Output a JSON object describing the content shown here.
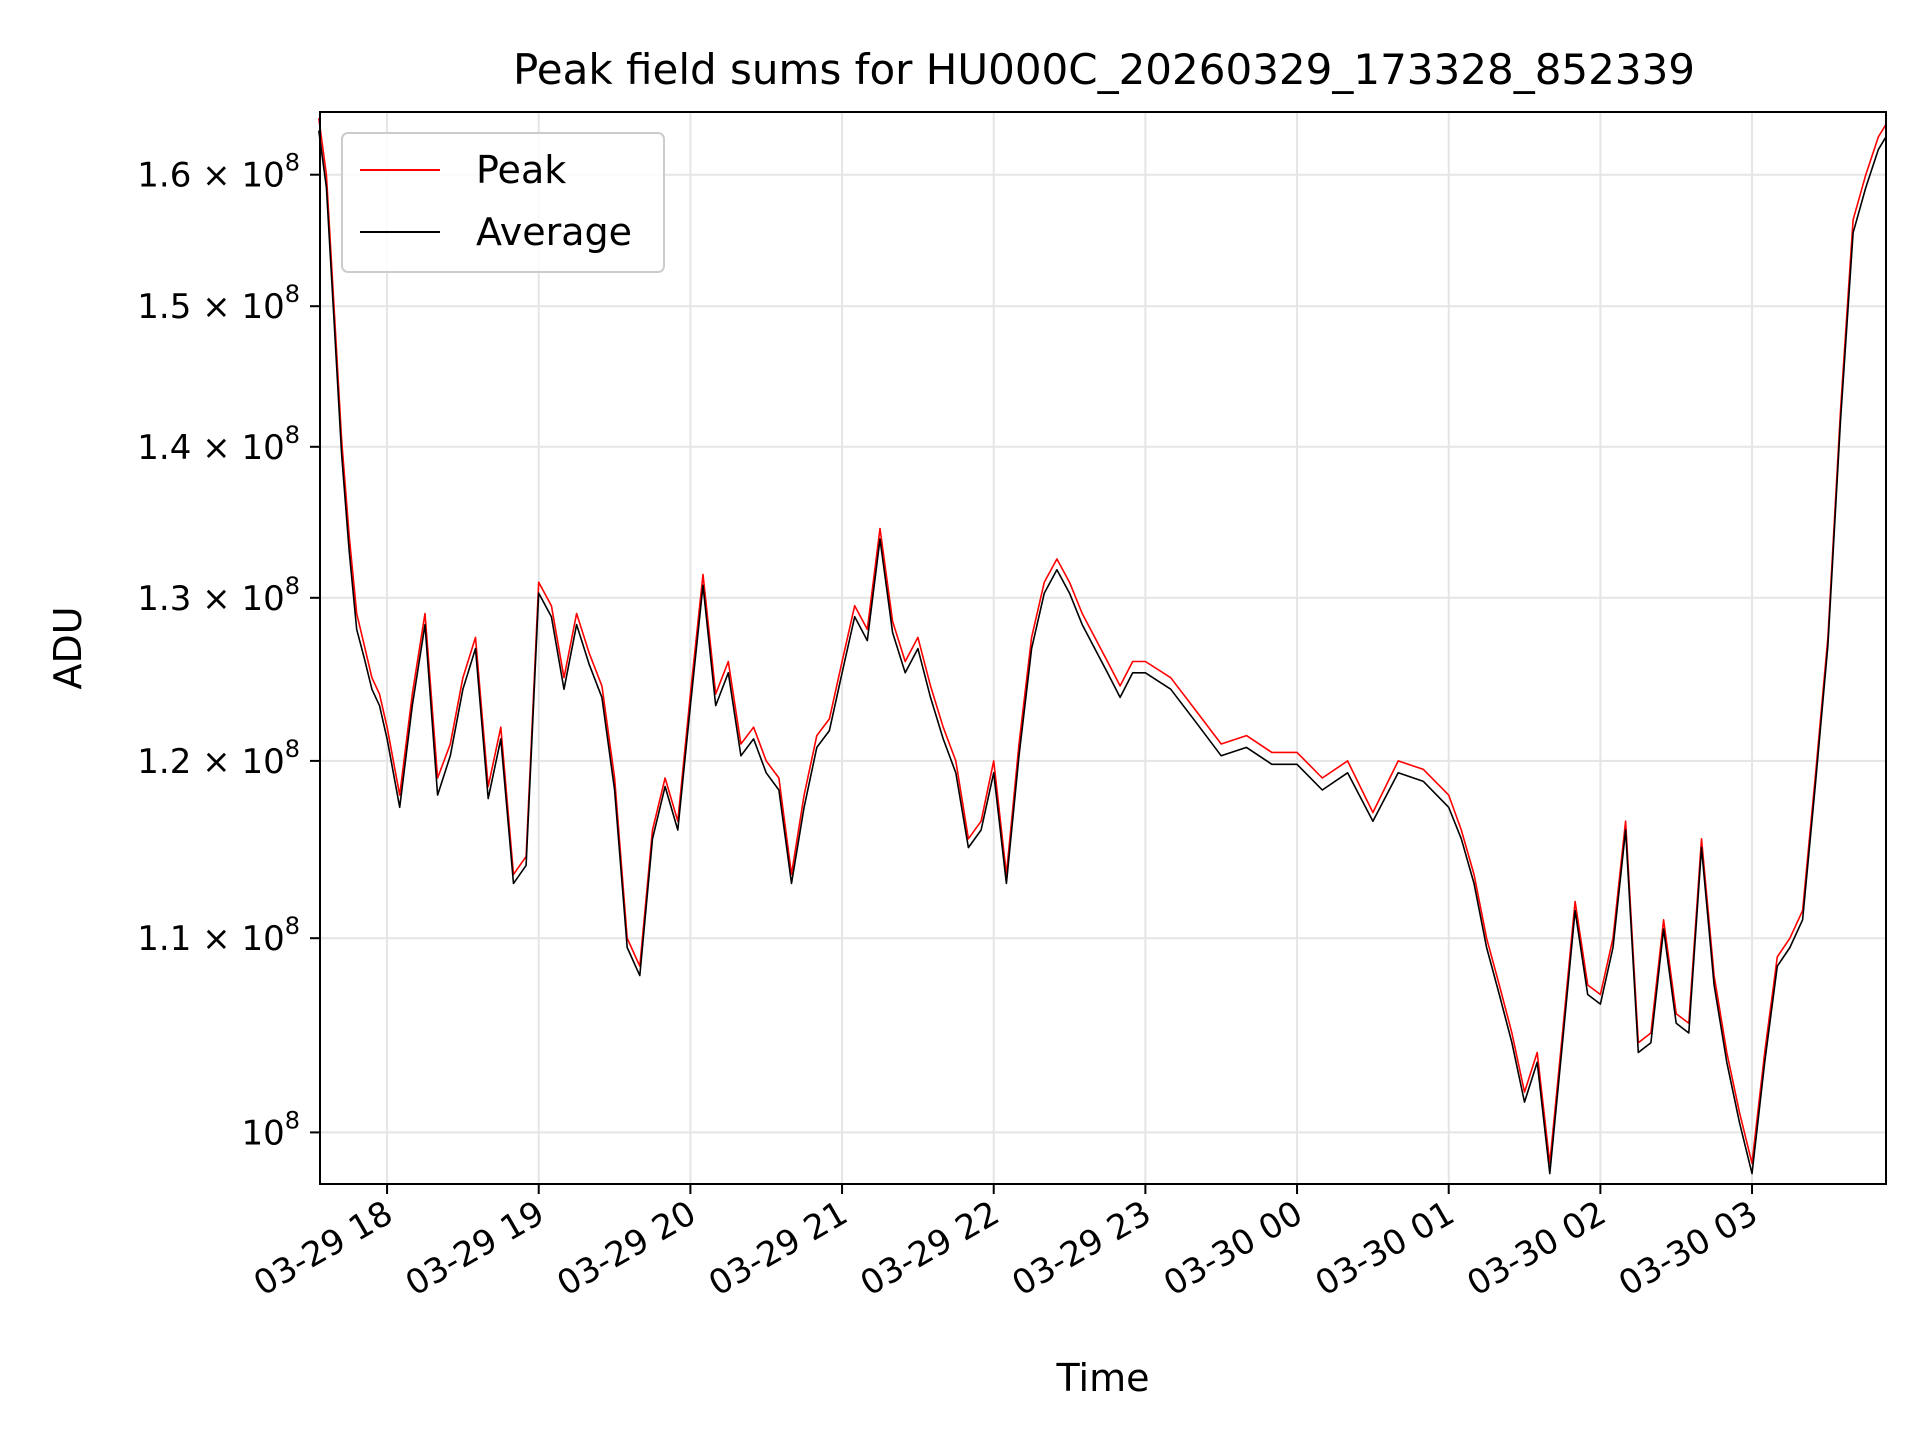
{
  "chart_data": {
    "type": "line",
    "title": "Peak field sums for HU000C_20260329_173328_852339",
    "xlabel": "Time",
    "ylabel": "ADU",
    "x_range": [
      "2026-03-29 17:33:28",
      "2026-03-30 03:53:00"
    ],
    "ylim": [
      97500000,
      165000000
    ],
    "yscale": "log",
    "grid": true,
    "legend_position": "top-left",
    "x_ticks": [
      {
        "label": "03-29 18",
        "value": "2026-03-29 18:00"
      },
      {
        "label": "03-29 19",
        "value": "2026-03-29 19:00"
      },
      {
        "label": "03-29 20",
        "value": "2026-03-29 20:00"
      },
      {
        "label": "03-29 21",
        "value": "2026-03-29 21:00"
      },
      {
        "label": "03-29 22",
        "value": "2026-03-29 22:00"
      },
      {
        "label": "03-29 23",
        "value": "2026-03-29 23:00"
      },
      {
        "label": "03-30 00",
        "value": "2026-03-30 00:00"
      },
      {
        "label": "03-30 01",
        "value": "2026-03-30 01:00"
      },
      {
        "label": "03-30 02",
        "value": "2026-03-30 02:00"
      },
      {
        "label": "03-30 03",
        "value": "2026-03-30 03:00"
      }
    ],
    "y_ticks": [
      {
        "mantissa": "1.6",
        "exp": "8",
        "value": 160000000
      },
      {
        "mantissa": "1.5",
        "exp": "8",
        "value": 150000000
      },
      {
        "mantissa": "1.4",
        "exp": "8",
        "value": 140000000
      },
      {
        "mantissa": "1.3",
        "exp": "8",
        "value": 130000000
      },
      {
        "mantissa": "1.2",
        "exp": "8",
        "value": 120000000
      },
      {
        "mantissa": "1.1",
        "exp": "8",
        "value": 110000000
      },
      {
        "mantissa": "",
        "exp": "8",
        "value": 100000000
      }
    ],
    "series": [
      {
        "name": "Peak",
        "color": "#ff0000",
        "x": [
          "2026-03-29 17:33",
          "2026-03-29 17:36",
          "2026-03-29 17:39",
          "2026-03-29 17:42",
          "2026-03-29 17:45",
          "2026-03-29 17:48",
          "2026-03-29 17:51",
          "2026-03-29 17:54",
          "2026-03-29 17:57",
          "2026-03-29 18:00",
          "2026-03-29 18:05",
          "2026-03-29 18:10",
          "2026-03-29 18:15",
          "2026-03-29 18:20",
          "2026-03-29 18:25",
          "2026-03-29 18:30",
          "2026-03-29 18:35",
          "2026-03-29 18:40",
          "2026-03-29 18:45",
          "2026-03-29 18:50",
          "2026-03-29 18:55",
          "2026-03-29 19:00",
          "2026-03-29 19:05",
          "2026-03-29 19:10",
          "2026-03-29 19:15",
          "2026-03-29 19:20",
          "2026-03-29 19:25",
          "2026-03-29 19:30",
          "2026-03-29 19:35",
          "2026-03-29 19:40",
          "2026-03-29 19:45",
          "2026-03-29 19:50",
          "2026-03-29 19:55",
          "2026-03-29 20:00",
          "2026-03-29 20:05",
          "2026-03-29 20:10",
          "2026-03-29 20:15",
          "2026-03-29 20:20",
          "2026-03-29 20:25",
          "2026-03-29 20:30",
          "2026-03-29 20:35",
          "2026-03-29 20:40",
          "2026-03-29 20:45",
          "2026-03-29 20:50",
          "2026-03-29 20:55",
          "2026-03-29 21:00",
          "2026-03-29 21:05",
          "2026-03-29 21:10",
          "2026-03-29 21:15",
          "2026-03-29 21:20",
          "2026-03-29 21:25",
          "2026-03-29 21:30",
          "2026-03-29 21:35",
          "2026-03-29 21:40",
          "2026-03-29 21:45",
          "2026-03-29 21:50",
          "2026-03-29 21:55",
          "2026-03-29 22:00",
          "2026-03-29 22:05",
          "2026-03-29 22:10",
          "2026-03-29 22:15",
          "2026-03-29 22:20",
          "2026-03-29 22:25",
          "2026-03-29 22:30",
          "2026-03-29 22:35",
          "2026-03-29 22:40",
          "2026-03-29 22:45",
          "2026-03-29 22:50",
          "2026-03-29 22:55",
          "2026-03-29 23:00",
          "2026-03-29 23:10",
          "2026-03-29 23:20",
          "2026-03-29 23:30",
          "2026-03-29 23:40",
          "2026-03-29 23:50",
          "2026-03-30 00:00",
          "2026-03-30 00:10",
          "2026-03-30 00:20",
          "2026-03-30 00:30",
          "2026-03-30 00:40",
          "2026-03-30 00:50",
          "2026-03-30 01:00",
          "2026-03-30 01:05",
          "2026-03-30 01:10",
          "2026-03-30 01:15",
          "2026-03-30 01:20",
          "2026-03-30 01:25",
          "2026-03-30 01:30",
          "2026-03-30 01:35",
          "2026-03-30 01:40",
          "2026-03-30 01:45",
          "2026-03-30 01:50",
          "2026-03-30 01:55",
          "2026-03-30 02:00",
          "2026-03-30 02:05",
          "2026-03-30 02:10",
          "2026-03-30 02:15",
          "2026-03-30 02:20",
          "2026-03-30 02:25",
          "2026-03-30 02:30",
          "2026-03-30 02:35",
          "2026-03-30 02:40",
          "2026-03-30 02:45",
          "2026-03-30 02:50",
          "2026-03-30 02:55",
          "2026-03-30 03:00",
          "2026-03-30 03:05",
          "2026-03-30 03:10",
          "2026-03-30 03:15",
          "2026-03-30 03:20",
          "2026-03-30 03:25",
          "2026-03-30 03:30",
          "2026-03-30 03:35",
          "2026-03-30 03:40",
          "2026-03-30 03:45",
          "2026-03-30 03:50",
          "2026-03-30 03:53"
        ],
        "values": [
          164500000,
          160000000,
          150000000,
          140500000,
          134000000,
          129000000,
          127000000,
          125000000,
          124000000,
          122000000,
          118000000,
          124000000,
          129000000,
          119000000,
          121000000,
          125000000,
          127500000,
          118500000,
          122000000,
          113500000,
          114500000,
          131000000,
          129500000,
          125000000,
          129000000,
          126500000,
          124500000,
          119000000,
          110000000,
          108500000,
          116000000,
          119000000,
          116500000,
          124000000,
          131500000,
          124000000,
          126000000,
          121000000,
          122000000,
          120000000,
          119000000,
          113500000,
          118000000,
          121500000,
          122500000,
          126000000,
          129500000,
          128000000,
          134500000,
          128500000,
          126000000,
          127500000,
          124500000,
          122000000,
          120000000,
          115500000,
          116500000,
          120000000,
          113500000,
          121000000,
          127500000,
          131000000,
          132500000,
          131000000,
          129000000,
          127500000,
          126000000,
          124500000,
          126000000,
          126000000,
          125000000,
          123000000,
          121000000,
          121500000,
          120500000,
          120500000,
          119000000,
          120000000,
          117000000,
          120000000,
          119500000,
          118000000,
          116000000,
          113500000,
          110000000,
          107500000,
          105000000,
          102000000,
          104000000,
          98500000,
          105000000,
          112000000,
          107500000,
          107000000,
          110000000,
          116500000,
          104500000,
          105000000,
          111000000,
          106000000,
          105500000,
          115500000,
          108000000,
          104000000,
          101000000,
          98500000,
          104000000,
          109000000,
          110000000,
          111500000,
          119000000,
          127500000,
          142500000,
          156500000,
          160000000,
          163000000,
          164000000
        ]
      },
      {
        "name": "Average",
        "color": "#000000",
        "x": [
          "2026-03-29 17:33",
          "2026-03-29 17:36",
          "2026-03-29 17:39",
          "2026-03-29 17:42",
          "2026-03-29 17:45",
          "2026-03-29 17:48",
          "2026-03-29 17:51",
          "2026-03-29 17:54",
          "2026-03-29 17:57",
          "2026-03-29 18:00",
          "2026-03-29 18:05",
          "2026-03-29 18:10",
          "2026-03-29 18:15",
          "2026-03-29 18:20",
          "2026-03-29 18:25",
          "2026-03-29 18:30",
          "2026-03-29 18:35",
          "2026-03-29 18:40",
          "2026-03-29 18:45",
          "2026-03-29 18:50",
          "2026-03-29 18:55",
          "2026-03-29 19:00",
          "2026-03-29 19:05",
          "2026-03-29 19:10",
          "2026-03-29 19:15",
          "2026-03-29 19:20",
          "2026-03-29 19:25",
          "2026-03-29 19:30",
          "2026-03-29 19:35",
          "2026-03-29 19:40",
          "2026-03-29 19:45",
          "2026-03-29 19:50",
          "2026-03-29 19:55",
          "2026-03-29 20:00",
          "2026-03-29 20:05",
          "2026-03-29 20:10",
          "2026-03-29 20:15",
          "2026-03-29 20:20",
          "2026-03-29 20:25",
          "2026-03-29 20:30",
          "2026-03-29 20:35",
          "2026-03-29 20:40",
          "2026-03-29 20:45",
          "2026-03-29 20:50",
          "2026-03-29 20:55",
          "2026-03-29 21:00",
          "2026-03-29 21:05",
          "2026-03-29 21:10",
          "2026-03-29 21:15",
          "2026-03-29 21:20",
          "2026-03-29 21:25",
          "2026-03-29 21:30",
          "2026-03-29 21:35",
          "2026-03-29 21:40",
          "2026-03-29 21:45",
          "2026-03-29 21:50",
          "2026-03-29 21:55",
          "2026-03-29 22:00",
          "2026-03-29 22:05",
          "2026-03-29 22:10",
          "2026-03-29 22:15",
          "2026-03-29 22:20",
          "2026-03-29 22:25",
          "2026-03-29 22:30",
          "2026-03-29 22:35",
          "2026-03-29 22:40",
          "2026-03-29 22:45",
          "2026-03-29 22:50",
          "2026-03-29 22:55",
          "2026-03-29 23:00",
          "2026-03-29 23:10",
          "2026-03-29 23:20",
          "2026-03-29 23:30",
          "2026-03-29 23:40",
          "2026-03-29 23:50",
          "2026-03-30 00:00",
          "2026-03-30 00:10",
          "2026-03-30 00:20",
          "2026-03-30 00:30",
          "2026-03-30 00:40",
          "2026-03-30 00:50",
          "2026-03-30 01:00",
          "2026-03-30 01:05",
          "2026-03-30 01:10",
          "2026-03-30 01:15",
          "2026-03-30 01:20",
          "2026-03-30 01:25",
          "2026-03-30 01:30",
          "2026-03-30 01:35",
          "2026-03-30 01:40",
          "2026-03-30 01:45",
          "2026-03-30 01:50",
          "2026-03-30 01:55",
          "2026-03-30 02:00",
          "2026-03-30 02:05",
          "2026-03-30 02:10",
          "2026-03-30 02:15",
          "2026-03-30 02:20",
          "2026-03-30 02:25",
          "2026-03-30 02:30",
          "2026-03-30 02:35",
          "2026-03-30 02:40",
          "2026-03-30 02:45",
          "2026-03-30 02:50",
          "2026-03-30 02:55",
          "2026-03-30 03:00",
          "2026-03-30 03:05",
          "2026-03-30 03:10",
          "2026-03-30 03:15",
          "2026-03-30 03:20",
          "2026-03-30 03:25",
          "2026-03-30 03:30",
          "2026-03-30 03:35",
          "2026-03-30 03:40",
          "2026-03-30 03:45",
          "2026-03-30 03:50",
          "2026-03-30 03:53"
        ],
        "values": [
          163500000,
          159000000,
          149000000,
          139500000,
          133000000,
          128000000,
          126200000,
          124300000,
          123300000,
          121300000,
          117300000,
          123300000,
          128300000,
          118000000,
          120300000,
          124300000,
          126800000,
          117800000,
          121300000,
          113000000,
          114000000,
          130300000,
          128800000,
          124300000,
          128300000,
          125800000,
          123800000,
          118300000,
          109500000,
          108000000,
          115500000,
          118500000,
          116000000,
          123300000,
          130800000,
          123300000,
          125300000,
          120300000,
          121300000,
          119300000,
          118300000,
          113000000,
          117300000,
          120800000,
          121800000,
          125300000,
          128800000,
          127300000,
          133800000,
          127800000,
          125300000,
          126800000,
          123800000,
          121300000,
          119300000,
          115000000,
          116000000,
          119300000,
          113000000,
          120300000,
          126800000,
          130300000,
          131800000,
          130300000,
          128300000,
          126800000,
          125300000,
          123800000,
          125300000,
          125300000,
          124300000,
          122300000,
          120300000,
          120800000,
          119800000,
          119800000,
          118300000,
          119300000,
          116500000,
          119300000,
          118800000,
          117300000,
          115500000,
          113000000,
          109500000,
          107000000,
          104500000,
          101500000,
          103500000,
          98000000,
          104500000,
          111500000,
          107000000,
          106500000,
          109500000,
          116000000,
          104000000,
          104500000,
          110500000,
          105500000,
          105000000,
          115000000,
          107500000,
          103500000,
          100500000,
          98000000,
          103500000,
          108500000,
          109500000,
          111000000,
          118500000,
          127000000,
          141800000,
          155500000,
          159000000,
          162000000,
          163000000
        ]
      }
    ]
  }
}
